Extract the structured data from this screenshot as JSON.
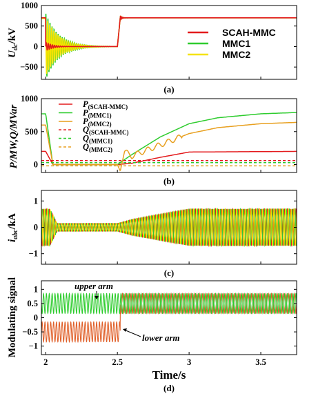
{
  "chart_data": [
    {
      "type": "line",
      "caption": "(a)",
      "ylabel": "U",
      "ylabel_sub": "dc",
      "ylabel_unit": "/kV",
      "xlim": [
        1.97,
        3.75
      ],
      "ylim": [
        -800,
        1000
      ],
      "yticks": [
        "1000",
        "500",
        "0",
        "−500"
      ],
      "ytick_values": [
        1000,
        500,
        0,
        -500
      ],
      "series": [
        {
          "name": "SCAH-MMC",
          "color": "#e31a1c",
          "x": [
            1.97,
            2.0,
            2.02,
            2.1,
            2.5,
            2.52,
            2.6,
            3.75
          ],
          "y": [
            700,
            700,
            0,
            0,
            0,
            700,
            700,
            700
          ]
        },
        {
          "name": "MMC1",
          "color": "#2ecc2e",
          "x": [
            1.97,
            2.0,
            2.02,
            2.3,
            2.5,
            2.52,
            3.75
          ],
          "y": [
            690,
            690,
            -750,
            0,
            0,
            700,
            700
          ]
        },
        {
          "name": "MMC2",
          "color": "#f5e300",
          "x": [
            1.97,
            2.0,
            2.02,
            2.3,
            2.5,
            2.52,
            3.75
          ],
          "y": [
            680,
            680,
            -790,
            0,
            0,
            700,
            700
          ]
        }
      ]
    },
    {
      "type": "line",
      "caption": "(b)",
      "ylabel": "P/MW,Q/MVar",
      "xlim": [
        1.97,
        3.75
      ],
      "ylim": [
        -120,
        1000
      ],
      "yticks": [
        "1000",
        "500",
        "0"
      ],
      "ytick_values": [
        1000,
        500,
        0
      ],
      "series": [
        {
          "name": "P(SCAH-MMC)",
          "legend_main": "P",
          "legend_sub": "(SCAH-MMC)",
          "color": "#e31a1c",
          "dash": false,
          "x": [
            1.97,
            2.0,
            2.05,
            2.5,
            2.6,
            2.8,
            3.0,
            3.75
          ],
          "y": [
            200,
            200,
            0,
            0,
            20,
            110,
            190,
            200
          ]
        },
        {
          "name": "P(MMC1)",
          "legend_main": "P",
          "legend_sub": "(MMC1)",
          "color": "#2ecc2e",
          "dash": false,
          "x": [
            1.97,
            2.0,
            2.05,
            2.5,
            2.6,
            2.8,
            3.0,
            3.2,
            3.5,
            3.75
          ],
          "y": [
            770,
            770,
            0,
            0,
            150,
            420,
            620,
            710,
            770,
            790
          ]
        },
        {
          "name": "P(MMC2)",
          "legend_main": "P",
          "legend_sub": "(MMC2)",
          "color": "#e8a020",
          "dash": false,
          "x": [
            1.97,
            2.0,
            2.05,
            2.5,
            2.52,
            2.55,
            2.6,
            2.8,
            3.0,
            3.2,
            3.5,
            3.75
          ],
          "y": [
            600,
            600,
            0,
            0,
            -100,
            200,
            130,
            300,
            470,
            560,
            620,
            640
          ]
        },
        {
          "name": "Q(SCAH-MMC)",
          "legend_main": "Q",
          "legend_sub": "(SCAH-MMC)",
          "color": "#e31a1c",
          "dash": true,
          "x": [
            1.97,
            3.75
          ],
          "y": [
            60,
            60
          ]
        },
        {
          "name": "Q(MMC1)",
          "legend_main": "Q",
          "legend_sub": "(MMC1)",
          "color": "#2ecc2e",
          "dash": true,
          "x": [
            1.97,
            3.75
          ],
          "y": [
            30,
            30
          ]
        },
        {
          "name": "Q(MMC2)",
          "legend_main": "Q",
          "legend_sub": "(MMC2)",
          "color": "#e8a020",
          "dash": true,
          "x": [
            1.97,
            3.75
          ],
          "y": [
            -20,
            -20
          ]
        }
      ]
    },
    {
      "type": "line",
      "caption": "(c)",
      "ylabel": "i",
      "ylabel_sub": "abc",
      "ylabel_unit": "/kA",
      "xlim": [
        1.97,
        3.75
      ],
      "ylim": [
        -1.4,
        1.4
      ],
      "yticks": [
        "1",
        "0",
        "−1"
      ],
      "ytick_values": [
        1,
        0,
        -1
      ],
      "envelope": {
        "x": [
          1.97,
          2.0,
          2.03,
          2.08,
          2.5,
          2.6,
          3.0,
          3.75
        ],
        "amplitude": [
          0.7,
          0.7,
          0.7,
          0.15,
          0.15,
          0.3,
          0.7,
          0.7
        ]
      },
      "colors": [
        "#e31a1c",
        "#2ecc2e",
        "#f5e300"
      ]
    },
    {
      "type": "line",
      "caption": "(d)",
      "ylabel": "Modulating signal",
      "xlabel": "Time/s",
      "xlim": [
        1.97,
        3.75
      ],
      "ylim": [
        -1.3,
        1.3
      ],
      "yticks": [
        "1",
        "0.5",
        "0",
        "−0.5",
        "−1"
      ],
      "ytick_values": [
        1,
        0.5,
        0,
        -0.5,
        -1
      ],
      "xticks": [
        "2",
        "2.5",
        "3",
        "3.5"
      ],
      "xtick_values": [
        2,
        2.5,
        3,
        3.5
      ],
      "series": [
        {
          "name": "upper arm",
          "color": "#2ecc2e",
          "center_before": 0.5,
          "amp_before": 0.35,
          "center_after": 0.5,
          "amp_after": 0.35
        },
        {
          "name": "lower arm",
          "color": "#e0602a",
          "center_before": -0.5,
          "amp_before": 0.35,
          "center_after": 0.5,
          "amp_after": 0.35
        }
      ],
      "switch_time": 2.52,
      "annotations": [
        "upper arm",
        "lower arm"
      ]
    }
  ]
}
